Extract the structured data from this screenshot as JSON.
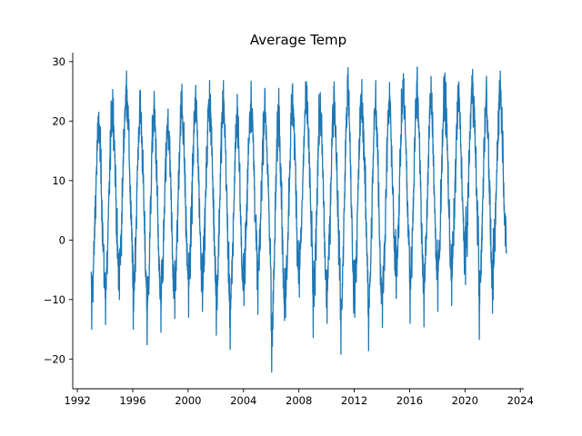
{
  "chart_data": {
    "type": "line",
    "title": "Average Temp",
    "xlabel": "",
    "ylabel": "",
    "x_range": [
      "1993-01-01",
      "2023-01-01"
    ],
    "xlim": [
      "1991-09-01",
      "2024-04-01"
    ],
    "ylim": [
      -25,
      31.5
    ],
    "x_ticks": [
      "1992",
      "1996",
      "2000",
      "2004",
      "2008",
      "2012",
      "2016",
      "2020",
      "2024"
    ],
    "y_ticks": [
      "-20",
      "-10",
      "0",
      "10",
      "20",
      "30"
    ],
    "grid": false,
    "legend": "none",
    "color": "#1f77b4",
    "series": [
      {
        "seasonal_peaks_by_year": [
          {
            "year": 1993,
            "max": 21.5,
            "min": -15.0
          },
          {
            "year": 1994,
            "max": 25.3,
            "min": -14.2
          },
          {
            "year": 1995,
            "max": 28.4,
            "min": -10.0
          },
          {
            "year": 1996,
            "max": 25.2,
            "min": -15.0
          },
          {
            "year": 1997,
            "max": 25.0,
            "min": -17.6
          },
          {
            "year": 1998,
            "max": 22.0,
            "min": -15.5
          },
          {
            "year": 1999,
            "max": 26.2,
            "min": -13.2
          },
          {
            "year": 2000,
            "max": 26.0,
            "min": -13.0
          },
          {
            "year": 2001,
            "max": 26.8,
            "min": -12.0
          },
          {
            "year": 2002,
            "max": 26.8,
            "min": -16.0
          },
          {
            "year": 2003,
            "max": 24.5,
            "min": -18.4
          },
          {
            "year": 2004,
            "max": 26.7,
            "min": -11.0
          },
          {
            "year": 2005,
            "max": 25.5,
            "min": -12.5
          },
          {
            "year": 2006,
            "max": 25.5,
            "min": -22.2
          },
          {
            "year": 2007,
            "max": 26.3,
            "min": -13.0
          },
          {
            "year": 2008,
            "max": 26.6,
            "min": -9.6
          },
          {
            "year": 2009,
            "max": 24.8,
            "min": -16.4
          },
          {
            "year": 2010,
            "max": 26.6,
            "min": -14.0
          },
          {
            "year": 2011,
            "max": 29.0,
            "min": -19.2
          },
          {
            "year": 2012,
            "max": 27.0,
            "min": -13.0
          },
          {
            "year": 2013,
            "max": 26.8,
            "min": -18.6
          },
          {
            "year": 2014,
            "max": 26.5,
            "min": -14.7
          },
          {
            "year": 2015,
            "max": 28.0,
            "min": -9.8
          },
          {
            "year": 2016,
            "max": 29.1,
            "min": -14.0
          },
          {
            "year": 2017,
            "max": 27.5,
            "min": -14.6
          },
          {
            "year": 2018,
            "max": 28.1,
            "min": -12.0
          },
          {
            "year": 2019,
            "max": 26.6,
            "min": -11.0
          },
          {
            "year": 2020,
            "max": 28.7,
            "min": -7.5
          },
          {
            "year": 2021,
            "max": 27.5,
            "min": -16.7
          },
          {
            "year": 2022,
            "max": 28.4,
            "min": -10.0
          }
        ]
      }
    ]
  }
}
